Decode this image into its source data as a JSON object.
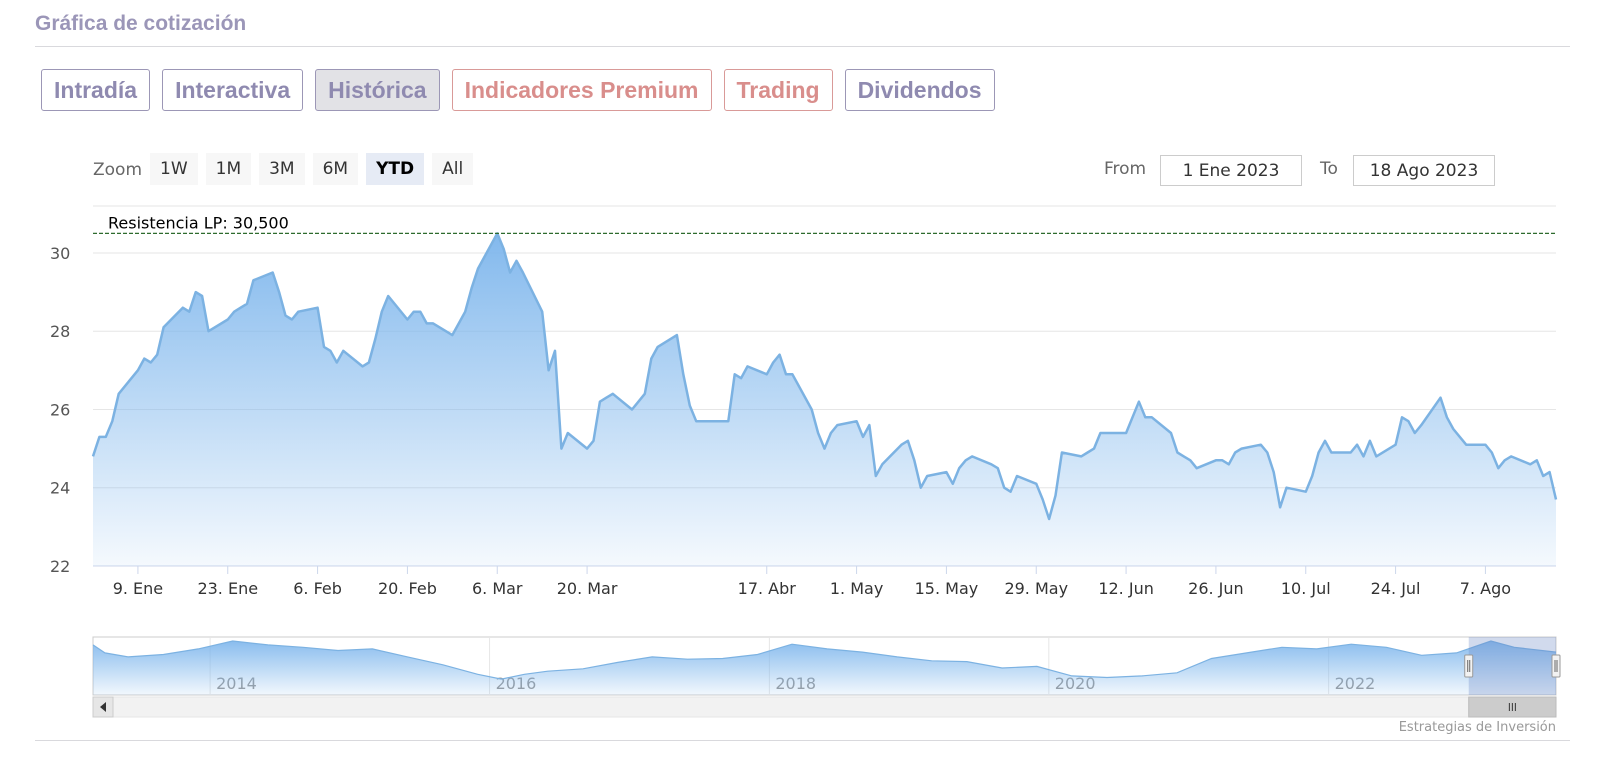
{
  "section_title": "Gráfica de cotización",
  "tabs": [
    {
      "label": "Intradía",
      "active": false,
      "premium": false
    },
    {
      "label": "Interactiva",
      "active": false,
      "premium": false
    },
    {
      "label": "Histórica",
      "active": true,
      "premium": false
    },
    {
      "label": "Indicadores Premium",
      "active": false,
      "premium": true
    },
    {
      "label": "Trading",
      "active": false,
      "premium": true
    },
    {
      "label": "Dividendos",
      "active": false,
      "premium": false
    }
  ],
  "range_selector": {
    "zoom_label": "Zoom",
    "buttons": [
      "1W",
      "1M",
      "3M",
      "6M",
      "YTD",
      "All"
    ],
    "selected": "YTD",
    "from_label": "From",
    "from_value": "1 Ene 2023",
    "to_label": "To",
    "to_value": "18 Ago 2023"
  },
  "credits": "Estrategias de Inversión",
  "colors": {
    "line": "#7cb2e2",
    "fill_top": "#7cb5ec",
    "resistance": "#2e6b2e",
    "navigator_mask": "#6685c2"
  },
  "chart_data": {
    "type": "area",
    "title": "",
    "xlabel": "",
    "ylabel": "",
    "ylim": [
      22,
      31.2
    ],
    "yticks": [
      22,
      24,
      26,
      28,
      30
    ],
    "xlim": [
      "2023-01-02",
      "2023-08-18"
    ],
    "xticks": [
      {
        "date": "2023-01-09",
        "label": "9. Ene"
      },
      {
        "date": "2023-01-23",
        "label": "23. Ene"
      },
      {
        "date": "2023-02-06",
        "label": "6. Feb"
      },
      {
        "date": "2023-02-20",
        "label": "20. Feb"
      },
      {
        "date": "2023-03-06",
        "label": "6. Mar"
      },
      {
        "date": "2023-03-20",
        "label": "20. Mar"
      },
      {
        "date": "2023-04-17",
        "label": "17. Abr"
      },
      {
        "date": "2023-05-01",
        "label": "1. May"
      },
      {
        "date": "2023-05-15",
        "label": "15. May"
      },
      {
        "date": "2023-05-29",
        "label": "29. May"
      },
      {
        "date": "2023-06-12",
        "label": "12. Jun"
      },
      {
        "date": "2023-06-26",
        "label": "26. Jun"
      },
      {
        "date": "2023-07-10",
        "label": "10. Jul"
      },
      {
        "date": "2023-07-24",
        "label": "24. Jul"
      },
      {
        "date": "2023-08-07",
        "label": "7. Ago"
      }
    ],
    "grid": true,
    "resistance": {
      "label": "Resistencia LP: 30,500",
      "value": 30.5
    },
    "series": [
      {
        "points": [
          [
            "2023-01-02",
            24.8
          ],
          [
            "2023-01-03",
            25.3
          ],
          [
            "2023-01-04",
            25.3
          ],
          [
            "2023-01-05",
            25.7
          ],
          [
            "2023-01-06",
            26.4
          ],
          [
            "2023-01-09",
            27.0
          ],
          [
            "2023-01-10",
            27.3
          ],
          [
            "2023-01-11",
            27.2
          ],
          [
            "2023-01-12",
            27.4
          ],
          [
            "2023-01-13",
            28.1
          ],
          [
            "2023-01-16",
            28.6
          ],
          [
            "2023-01-17",
            28.5
          ],
          [
            "2023-01-18",
            29.0
          ],
          [
            "2023-01-19",
            28.9
          ],
          [
            "2023-01-20",
            28.0
          ],
          [
            "2023-01-23",
            28.3
          ],
          [
            "2023-01-24",
            28.5
          ],
          [
            "2023-01-25",
            28.6
          ],
          [
            "2023-01-26",
            28.7
          ],
          [
            "2023-01-27",
            29.3
          ],
          [
            "2023-01-30",
            29.5
          ],
          [
            "2023-01-31",
            29.0
          ],
          [
            "2023-02-01",
            28.4
          ],
          [
            "2023-02-02",
            28.3
          ],
          [
            "2023-02-03",
            28.5
          ],
          [
            "2023-02-06",
            28.6
          ],
          [
            "2023-02-07",
            27.6
          ],
          [
            "2023-02-08",
            27.5
          ],
          [
            "2023-02-09",
            27.2
          ],
          [
            "2023-02-10",
            27.5
          ],
          [
            "2023-02-13",
            27.1
          ],
          [
            "2023-02-14",
            27.2
          ],
          [
            "2023-02-15",
            27.8
          ],
          [
            "2023-02-16",
            28.5
          ],
          [
            "2023-02-17",
            28.9
          ],
          [
            "2023-02-20",
            28.3
          ],
          [
            "2023-02-21",
            28.5
          ],
          [
            "2023-02-22",
            28.5
          ],
          [
            "2023-02-23",
            28.2
          ],
          [
            "2023-02-24",
            28.2
          ],
          [
            "2023-02-27",
            27.9
          ],
          [
            "2023-02-28",
            28.2
          ],
          [
            "2023-03-01",
            28.5
          ],
          [
            "2023-03-02",
            29.1
          ],
          [
            "2023-03-03",
            29.6
          ],
          [
            "2023-03-06",
            30.5
          ],
          [
            "2023-03-07",
            30.1
          ],
          [
            "2023-03-08",
            29.5
          ],
          [
            "2023-03-09",
            29.8
          ],
          [
            "2023-03-10",
            29.5
          ],
          [
            "2023-03-13",
            28.5
          ],
          [
            "2023-03-14",
            27.0
          ],
          [
            "2023-03-15",
            27.5
          ],
          [
            "2023-03-16",
            25.0
          ],
          [
            "2023-03-17",
            25.4
          ],
          [
            "2023-03-20",
            25.0
          ],
          [
            "2023-03-21",
            25.2
          ],
          [
            "2023-03-22",
            26.2
          ],
          [
            "2023-03-23",
            26.3
          ],
          [
            "2023-03-24",
            26.4
          ],
          [
            "2023-03-27",
            26.0
          ],
          [
            "2023-03-28",
            26.2
          ],
          [
            "2023-03-29",
            26.4
          ],
          [
            "2023-03-30",
            27.3
          ],
          [
            "2023-03-31",
            27.6
          ],
          [
            "2023-04-03",
            27.9
          ],
          [
            "2023-04-04",
            26.9
          ],
          [
            "2023-04-05",
            26.1
          ],
          [
            "2023-04-06",
            25.7
          ],
          [
            "2023-04-11",
            25.7
          ],
          [
            "2023-04-12",
            26.9
          ],
          [
            "2023-04-13",
            26.8
          ],
          [
            "2023-04-14",
            27.1
          ],
          [
            "2023-04-17",
            26.9
          ],
          [
            "2023-04-18",
            27.2
          ],
          [
            "2023-04-19",
            27.4
          ],
          [
            "2023-04-20",
            26.9
          ],
          [
            "2023-04-21",
            26.9
          ],
          [
            "2023-04-24",
            26.0
          ],
          [
            "2023-04-25",
            25.4
          ],
          [
            "2023-04-26",
            25.0
          ],
          [
            "2023-04-27",
            25.4
          ],
          [
            "2023-04-28",
            25.6
          ],
          [
            "2023-05-01",
            25.7
          ],
          [
            "2023-05-02",
            25.3
          ],
          [
            "2023-05-03",
            25.6
          ],
          [
            "2023-05-04",
            24.3
          ],
          [
            "2023-05-05",
            24.6
          ],
          [
            "2023-05-08",
            25.1
          ],
          [
            "2023-05-09",
            25.2
          ],
          [
            "2023-05-10",
            24.7
          ],
          [
            "2023-05-11",
            24.0
          ],
          [
            "2023-05-12",
            24.3
          ],
          [
            "2023-05-15",
            24.4
          ],
          [
            "2023-05-16",
            24.1
          ],
          [
            "2023-05-17",
            24.5
          ],
          [
            "2023-05-18",
            24.7
          ],
          [
            "2023-05-19",
            24.8
          ],
          [
            "2023-05-22",
            24.6
          ],
          [
            "2023-05-23",
            24.5
          ],
          [
            "2023-05-24",
            24.0
          ],
          [
            "2023-05-25",
            23.9
          ],
          [
            "2023-05-26",
            24.3
          ],
          [
            "2023-05-29",
            24.1
          ],
          [
            "2023-05-30",
            23.7
          ],
          [
            "2023-05-31",
            23.2
          ],
          [
            "2023-06-01",
            23.8
          ],
          [
            "2023-06-02",
            24.9
          ],
          [
            "2023-06-05",
            24.8
          ],
          [
            "2023-06-06",
            24.9
          ],
          [
            "2023-06-07",
            25.0
          ],
          [
            "2023-06-08",
            25.4
          ],
          [
            "2023-06-09",
            25.4
          ],
          [
            "2023-06-12",
            25.4
          ],
          [
            "2023-06-13",
            25.8
          ],
          [
            "2023-06-14",
            26.2
          ],
          [
            "2023-06-15",
            25.8
          ],
          [
            "2023-06-16",
            25.8
          ],
          [
            "2023-06-19",
            25.4
          ],
          [
            "2023-06-20",
            24.9
          ],
          [
            "2023-06-21",
            24.8
          ],
          [
            "2023-06-22",
            24.7
          ],
          [
            "2023-06-23",
            24.5
          ],
          [
            "2023-06-26",
            24.7
          ],
          [
            "2023-06-27",
            24.7
          ],
          [
            "2023-06-28",
            24.6
          ],
          [
            "2023-06-29",
            24.9
          ],
          [
            "2023-06-30",
            25.0
          ],
          [
            "2023-07-03",
            25.1
          ],
          [
            "2023-07-04",
            24.9
          ],
          [
            "2023-07-05",
            24.4
          ],
          [
            "2023-07-06",
            23.5
          ],
          [
            "2023-07-07",
            24.0
          ],
          [
            "2023-07-10",
            23.9
          ],
          [
            "2023-07-11",
            24.3
          ],
          [
            "2023-07-12",
            24.9
          ],
          [
            "2023-07-13",
            25.2
          ],
          [
            "2023-07-14",
            24.9
          ],
          [
            "2023-07-17",
            24.9
          ],
          [
            "2023-07-18",
            25.1
          ],
          [
            "2023-07-19",
            24.8
          ],
          [
            "2023-07-20",
            25.2
          ],
          [
            "2023-07-21",
            24.8
          ],
          [
            "2023-07-24",
            25.1
          ],
          [
            "2023-07-25",
            25.8
          ],
          [
            "2023-07-26",
            25.7
          ],
          [
            "2023-07-27",
            25.4
          ],
          [
            "2023-07-28",
            25.6
          ],
          [
            "2023-07-31",
            26.3
          ],
          [
            "2023-08-01",
            25.8
          ],
          [
            "2023-08-02",
            25.5
          ],
          [
            "2023-08-03",
            25.3
          ],
          [
            "2023-08-04",
            25.1
          ],
          [
            "2023-08-07",
            25.1
          ],
          [
            "2023-08-08",
            24.9
          ],
          [
            "2023-08-09",
            24.5
          ],
          [
            "2023-08-10",
            24.7
          ],
          [
            "2023-08-11",
            24.8
          ],
          [
            "2023-08-14",
            24.6
          ],
          [
            "2023-08-15",
            24.7
          ],
          [
            "2023-08-16",
            24.3
          ],
          [
            "2023-08-17",
            24.4
          ],
          [
            "2023-08-18",
            23.7
          ]
        ]
      }
    ],
    "navigator": {
      "year_labels": [
        "2014",
        "2016",
        "2018",
        "2020",
        "2022"
      ],
      "xlim": [
        "2013-03-01",
        "2023-08-18"
      ],
      "year_ticks": [
        "2014-01-01",
        "2016-01-01",
        "2018-01-01",
        "2020-01-01",
        "2022-01-01"
      ],
      "selected_range": [
        "2023-01-02",
        "2023-08-18"
      ],
      "series": [
        [
          "2013-03-01",
          30.5
        ],
        [
          "2013-04-01",
          29.5
        ],
        [
          "2013-06-01",
          29.0
        ],
        [
          "2013-09-01",
          29.3
        ],
        [
          "2013-12-01",
          30.0
        ],
        [
          "2014-03-01",
          31.0
        ],
        [
          "2014-06-01",
          30.5
        ],
        [
          "2014-09-01",
          30.2
        ],
        [
          "2014-12-01",
          29.8
        ],
        [
          "2015-03-01",
          30.0
        ],
        [
          "2015-06-01",
          29.0
        ],
        [
          "2015-09-01",
          28.0
        ],
        [
          "2015-12-01",
          26.8
        ],
        [
          "2016-02-01",
          26.2
        ],
        [
          "2016-04-01",
          26.8
        ],
        [
          "2016-06-01",
          27.2
        ],
        [
          "2016-09-01",
          27.5
        ],
        [
          "2016-12-01",
          28.3
        ],
        [
          "2017-03-01",
          29.0
        ],
        [
          "2017-06-01",
          28.7
        ],
        [
          "2017-09-01",
          28.8
        ],
        [
          "2017-12-01",
          29.3
        ],
        [
          "2018-03-01",
          30.6
        ],
        [
          "2018-06-01",
          30.0
        ],
        [
          "2018-09-01",
          29.6
        ],
        [
          "2018-12-01",
          29.0
        ],
        [
          "2019-03-01",
          28.5
        ],
        [
          "2019-06-01",
          28.4
        ],
        [
          "2019-09-01",
          27.6
        ],
        [
          "2019-12-01",
          27.8
        ],
        [
          "2020-03-01",
          26.6
        ],
        [
          "2020-06-01",
          26.4
        ],
        [
          "2020-09-01",
          26.6
        ],
        [
          "2020-12-01",
          27.0
        ],
        [
          "2021-03-01",
          28.8
        ],
        [
          "2021-06-01",
          29.5
        ],
        [
          "2021-09-01",
          30.2
        ],
        [
          "2021-12-01",
          30.0
        ],
        [
          "2022-03-01",
          30.6
        ],
        [
          "2022-06-01",
          30.2
        ],
        [
          "2022-09-01",
          29.2
        ],
        [
          "2022-12-01",
          29.5
        ],
        [
          "2023-03-01",
          31.0
        ],
        [
          "2023-05-01",
          30.2
        ],
        [
          "2023-08-18",
          29.6
        ]
      ]
    }
  }
}
